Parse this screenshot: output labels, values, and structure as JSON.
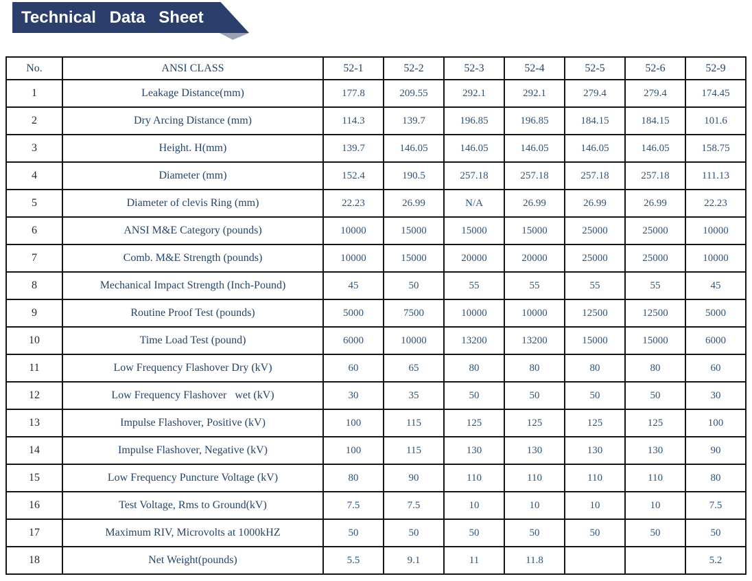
{
  "banner": {
    "title": "Technical Data Sheet",
    "bg_color": "#2c3e6b",
    "text_color": "#ffffff"
  },
  "table": {
    "header": {
      "no": "No.",
      "class": "ANSI CLASS",
      "columns": [
        "52-1",
        "52-2",
        "52-3",
        "52-4",
        "52-5",
        "52-6",
        "52-9"
      ]
    },
    "rows": [
      {
        "no": "1",
        "label": "Leakage Distance(mm)",
        "values": [
          "177.8",
          "209.55",
          "292.1",
          "292.1",
          "279.4",
          "279.4",
          "174.45"
        ]
      },
      {
        "no": "2",
        "label": "Dry Arcing Distance (mm)",
        "values": [
          "114.3",
          "139.7",
          "196.85",
          "196.85",
          "184.15",
          "184.15",
          "101.6"
        ]
      },
      {
        "no": "3",
        "label": "Height. H(mm)",
        "values": [
          "139.7",
          "146.05",
          "146.05",
          "146.05",
          "146.05",
          "146.05",
          "158.75"
        ]
      },
      {
        "no": "4",
        "label": "Diameter (mm)",
        "values": [
          "152.4",
          "190.5",
          "257.18",
          "257.18",
          "257.18",
          "257.18",
          "111.13"
        ]
      },
      {
        "no": "5",
        "label": "Diameter of clevis Ring (mm)",
        "values": [
          "22.23",
          "26.99",
          "N/A",
          "26.99",
          "26.99",
          "26.99",
          "22.23"
        ]
      },
      {
        "no": "6",
        "label": "ANSI M&E Category (pounds)",
        "values": [
          "10000",
          "15000",
          "15000",
          "15000",
          "25000",
          "25000",
          "10000"
        ]
      },
      {
        "no": "7",
        "label": "Comb. M&E Strength (pounds)",
        "values": [
          "10000",
          "15000",
          "20000",
          "20000",
          "25000",
          "25000",
          "10000"
        ]
      },
      {
        "no": "8",
        "label": "Mechanical Impact Strength (Inch-Pound)",
        "values": [
          "45",
          "50",
          "55",
          "55",
          "55",
          "55",
          "45"
        ]
      },
      {
        "no": "9",
        "label": "Routine Proof Test (pounds)",
        "values": [
          "5000",
          "7500",
          "10000",
          "10000",
          "12500",
          "12500",
          "5000"
        ]
      },
      {
        "no": "10",
        "label": "Time Load Test (pound)",
        "values": [
          "6000",
          "10000",
          "13200",
          "13200",
          "15000",
          "15000",
          "6000"
        ]
      },
      {
        "no": "11",
        "label": "Low Frequency Flashover Dry (kV)",
        "values": [
          "60",
          "65",
          "80",
          "80",
          "80",
          "80",
          "60"
        ]
      },
      {
        "no": "12",
        "label": "Low Frequency Flashover   wet (kV)",
        "values": [
          "30",
          "35",
          "50",
          "50",
          "50",
          "50",
          "30"
        ]
      },
      {
        "no": "13",
        "label": "Impulse Flashover, Positive (kV)",
        "values": [
          "100",
          "115",
          "125",
          "125",
          "125",
          "125",
          "100"
        ]
      },
      {
        "no": "14",
        "label": "Impulse Flashover, Negative (kV)",
        "values": [
          "100",
          "115",
          "130",
          "130",
          "130",
          "130",
          "90"
        ]
      },
      {
        "no": "15",
        "label": "Low Frequency Puncture Voltage (kV)",
        "values": [
          "80",
          "90",
          "110",
          "110",
          "110",
          "110",
          "80"
        ]
      },
      {
        "no": "16",
        "label": "Test Voltage, Rms to Ground(kV)",
        "values": [
          "7.5",
          "7.5",
          "10",
          "10",
          "10",
          "10",
          "7.5"
        ]
      },
      {
        "no": "17",
        "label": "Maximum RIV, Microvolts at 1000kHZ",
        "values": [
          "50",
          "50",
          "50",
          "50",
          "50",
          "50",
          "50"
        ]
      },
      {
        "no": "18",
        "label": "Net Weight(pounds)",
        "values": [
          "5.5",
          "9.1",
          "11",
          "11.8",
          "",
          "",
          "5.2"
        ]
      }
    ]
  }
}
